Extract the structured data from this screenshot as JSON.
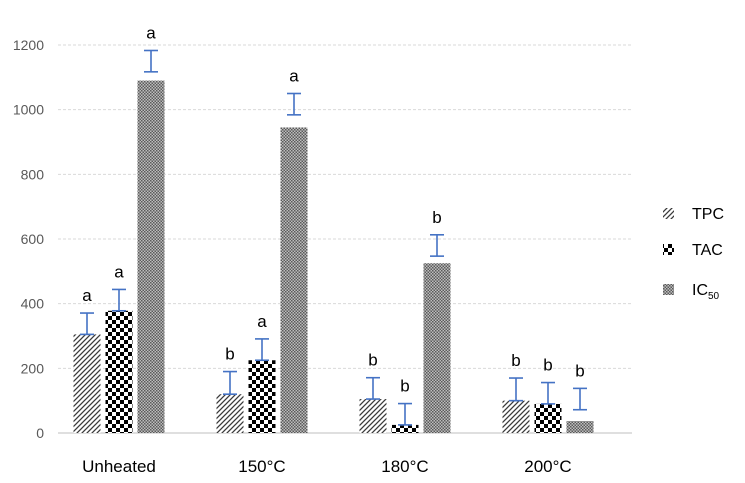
{
  "chart_data": {
    "type": "bar",
    "categories": [
      "Unheated",
      "150°C",
      "180°C",
      "200°C"
    ],
    "ylim": [
      0,
      1200
    ],
    "yticks": [
      0,
      200,
      400,
      600,
      800,
      1000,
      1200
    ],
    "grid": true,
    "legend_position": "right",
    "series": [
      {
        "name": "TPC",
        "pattern": "diagonal-hatch",
        "values": [
          305,
          120,
          105,
          100
        ],
        "errors": [
          33,
          35,
          33,
          35
        ],
        "significance": [
          "a",
          "b",
          "b",
          "b"
        ]
      },
      {
        "name": "TAC",
        "pattern": "checkerboard",
        "values": [
          378,
          225,
          25,
          90
        ],
        "errors": [
          33,
          33,
          33,
          33
        ],
        "significance": [
          "a",
          "a",
          "b",
          "b"
        ]
      },
      {
        "name": "IC",
        "name_subscript": "50",
        "pattern": "dense-dots",
        "values": [
          1090,
          945,
          525,
          37
        ],
        "errors": [
          33,
          33,
          33,
          33
        ],
        "error_centers": [
          1150,
          1017,
          580,
          105
        ],
        "significance": [
          "a",
          "a",
          "b",
          "b"
        ]
      }
    ],
    "error_bar_color": "#4472C4"
  }
}
